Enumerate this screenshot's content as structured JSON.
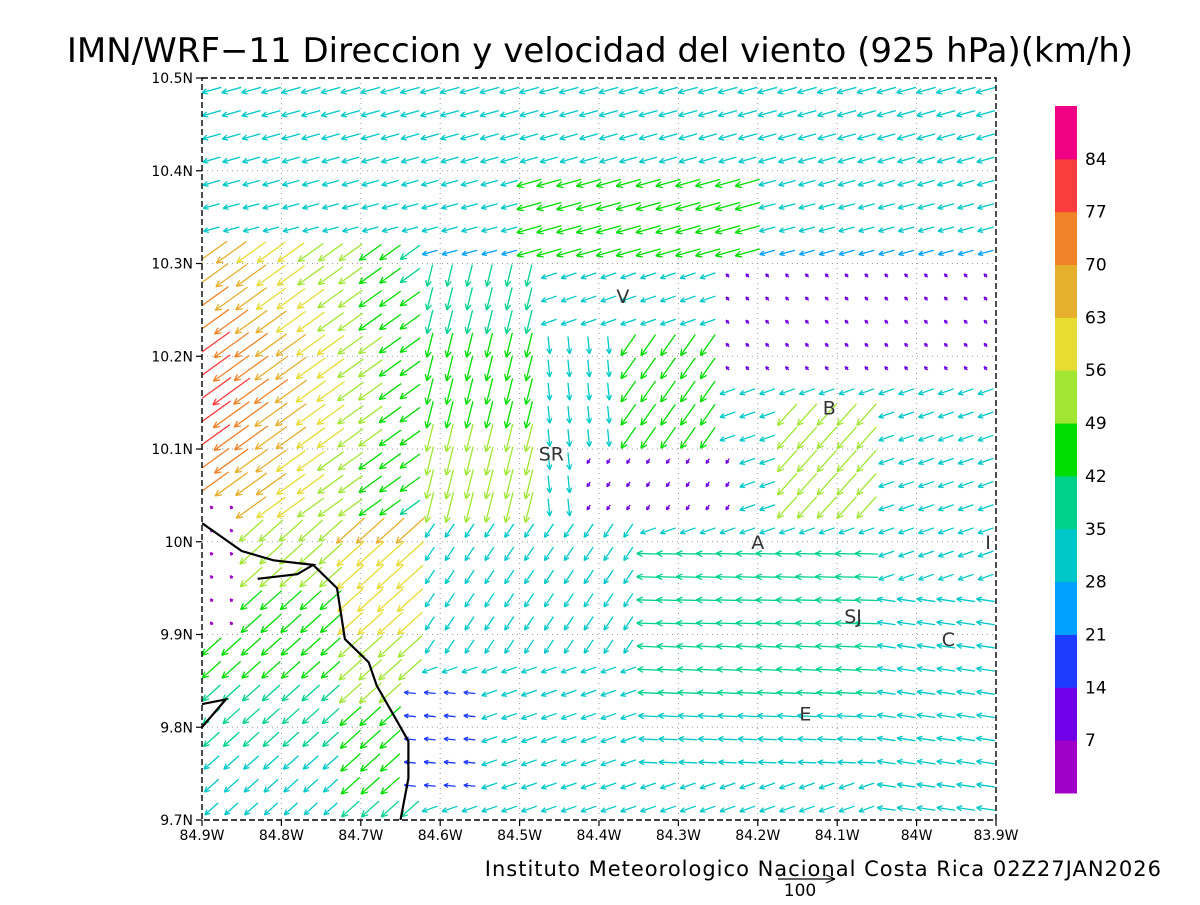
{
  "title": "IMN/WRF−11 Direccion y velocidad del viento (925 hPa)(km/h)",
  "footer": "Instituto Meteorologico Nacional Costa Rica 02Z27JAN2026",
  "reference_vector": {
    "label": "100",
    "value_kmh": 100
  },
  "map": {
    "lon_range": [
      -84.9,
      -83.9
    ],
    "lat_range": [
      9.7,
      10.5
    ],
    "x_ticks": [
      {
        "value": -84.9,
        "label": "84.9W"
      },
      {
        "value": -84.8,
        "label": "84.8W"
      },
      {
        "value": -84.7,
        "label": "84.7W"
      },
      {
        "value": -84.6,
        "label": "84.6W"
      },
      {
        "value": -84.5,
        "label": "84.5W"
      },
      {
        "value": -84.4,
        "label": "84.4W"
      },
      {
        "value": -84.3,
        "label": "84.3W"
      },
      {
        "value": -84.2,
        "label": "84.2W"
      },
      {
        "value": -84.1,
        "label": "84.1W"
      },
      {
        "value": -84.0,
        "label": "84W"
      },
      {
        "value": -83.9,
        "label": "83.9W"
      }
    ],
    "y_ticks": [
      {
        "value": 9.7,
        "label": "9.7N"
      },
      {
        "value": 9.8,
        "label": "9.8N"
      },
      {
        "value": 9.9,
        "label": "9.9N"
      },
      {
        "value": 10.0,
        "label": "10N"
      },
      {
        "value": 10.1,
        "label": "10.1N"
      },
      {
        "value": 10.2,
        "label": "10.2N"
      },
      {
        "value": 10.3,
        "label": "10.3N"
      },
      {
        "value": 10.4,
        "label": "10.4N"
      },
      {
        "value": 10.5,
        "label": "10.5N"
      }
    ],
    "grid": true,
    "places": [
      {
        "label": "V",
        "lon": -84.37,
        "lat": 10.265
      },
      {
        "label": "SR",
        "lon": -84.46,
        "lat": 10.095
      },
      {
        "label": "B",
        "lon": -84.11,
        "lat": 10.145
      },
      {
        "label": "A",
        "lon": -84.2,
        "lat": 10.0
      },
      {
        "label": "I",
        "lon": -83.91,
        "lat": 10.0
      },
      {
        "label": "SJ",
        "lon": -84.08,
        "lat": 9.92
      },
      {
        "label": "C",
        "lon": -83.96,
        "lat": 9.895
      },
      {
        "label": "E",
        "lon": -84.14,
        "lat": 9.815
      }
    ],
    "coastline": [
      [
        [
          -84.9,
          10.02
        ],
        [
          -84.85,
          9.99
        ],
        [
          -84.81,
          9.98
        ],
        [
          -84.76,
          9.975
        ],
        [
          -84.78,
          9.965
        ],
        [
          -84.83,
          9.96
        ]
      ],
      [
        [
          -84.76,
          9.975
        ],
        [
          -84.73,
          9.95
        ],
        [
          -84.72,
          9.895
        ],
        [
          -84.69,
          9.87
        ],
        [
          -84.68,
          9.845
        ],
        [
          -84.65,
          9.8
        ],
        [
          -84.64,
          9.785
        ],
        [
          -84.64,
          9.745
        ],
        [
          -84.65,
          9.7
        ]
      ],
      [
        [
          -84.9,
          9.825
        ],
        [
          -84.87,
          9.83
        ],
        [
          -84.9,
          9.8
        ]
      ]
    ]
  },
  "colorbar": {
    "labels": [
      "7",
      "14",
      "21",
      "28",
      "35",
      "42",
      "49",
      "56",
      "63",
      "70",
      "77",
      "84"
    ],
    "colors": [
      "#a000c8",
      "#7000e8",
      "#1e3cff",
      "#00a0ff",
      "#00c8c8",
      "#00d28c",
      "#00dc00",
      "#a0e632",
      "#e6dc32",
      "#e6af2d",
      "#f08228",
      "#fa3c3c",
      "#f00082"
    ]
  },
  "chart_data": {
    "type": "vector-field",
    "quantity": "wind direction and speed at 925 hPa",
    "units": "km/h",
    "flow_regions": [
      {
        "lon": [
          -84.9,
          -84.6
        ],
        "lat": [
          10.05,
          10.35
        ],
        "direction_toward": "southwest",
        "speed_kmh": [
          56,
          90
        ]
      },
      {
        "lon": [
          -84.9,
          -84.0
        ],
        "lat": [
          10.3,
          10.5
        ],
        "direction_toward": "west-southwest",
        "speed_kmh": [
          21,
          49
        ]
      },
      {
        "lon": [
          -84.5,
          -84.3
        ],
        "lat": [
          10.1,
          10.3
        ],
        "direction_toward": "south",
        "speed_kmh": [
          35,
          56
        ]
      },
      {
        "lon": [
          -84.3,
          -83.9
        ],
        "lat": [
          10.15,
          10.3
        ],
        "direction_toward": "northwest",
        "speed_kmh": [
          5,
          14
        ]
      },
      {
        "lon": [
          -84.35,
          -84.05
        ],
        "lat": [
          9.75,
          10.0
        ],
        "direction_toward": "west",
        "speed_kmh": [
          28,
          49
        ]
      },
      {
        "lon": [
          -84.9,
          -84.65
        ],
        "lat": [
          9.7,
          10.0
        ],
        "direction_toward": "southwest",
        "speed_kmh": [
          28,
          56
        ]
      }
    ]
  }
}
